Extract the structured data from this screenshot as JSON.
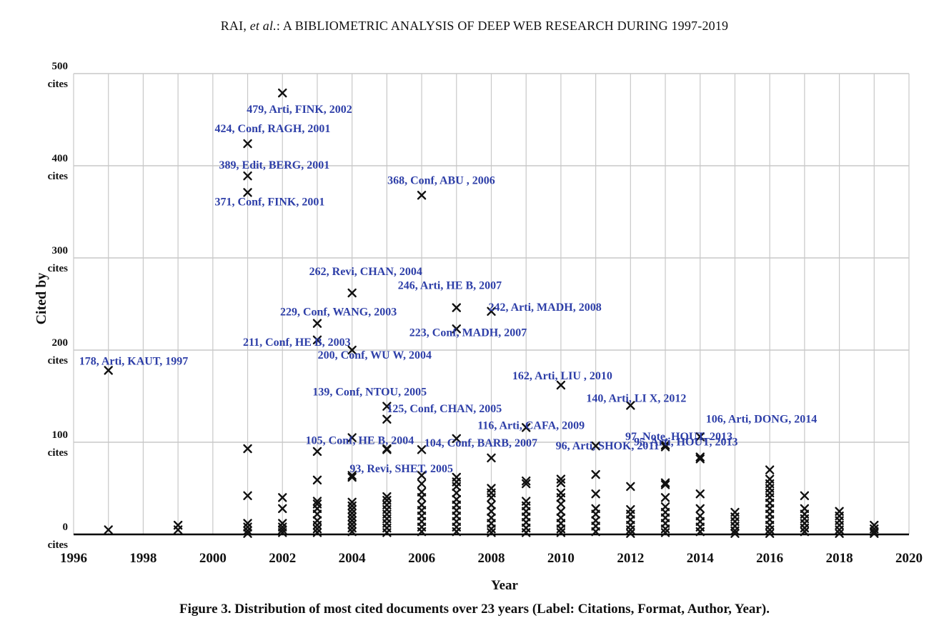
{
  "header": {
    "prefix": "RAI, ",
    "italic": "et al.",
    "suffix": ": A BIBLIOMETRIC ANALYSIS OF DEEP WEB RESEARCH DURING 1997-2019"
  },
  "caption": "Figure 3. Distribution of most cited documents over 23 years (Label: Citations, Format, Author, Year).",
  "colors": {
    "label": "#2e3fa8",
    "marker": "#111111",
    "grid": "#c8c8c8",
    "axis": "#000000"
  },
  "chart_data": {
    "type": "scatter",
    "xlabel": "Year",
    "ylabel": "Cited by",
    "xlim": [
      1996,
      2020
    ],
    "ylim": [
      0,
      500
    ],
    "grid": true,
    "x_ticks": [
      {
        "value": 1996,
        "label": "1996"
      },
      {
        "value": 1998,
        "label": "1998"
      },
      {
        "value": 2000,
        "label": "2000"
      },
      {
        "value": 2002,
        "label": "2002"
      },
      {
        "value": 2004,
        "label": "2004"
      },
      {
        "value": 2006,
        "label": "2006"
      },
      {
        "value": 2008,
        "label": "2008"
      },
      {
        "value": 2010,
        "label": "2010"
      },
      {
        "value": 2012,
        "label": "2012"
      },
      {
        "value": 2014,
        "label": "2014"
      },
      {
        "value": 2016,
        "label": "2016"
      },
      {
        "value": 2018,
        "label": "2018"
      },
      {
        "value": 2020,
        "label": "2020"
      }
    ],
    "y_ticks": [
      {
        "value": 0,
        "label": "0",
        "unit": "cites"
      },
      {
        "value": 100,
        "label": "100",
        "unit": "cites"
      },
      {
        "value": 200,
        "label": "200",
        "unit": "cites"
      },
      {
        "value": 300,
        "label": "300",
        "unit": "cites"
      },
      {
        "value": 400,
        "label": "400",
        "unit": "cites"
      },
      {
        "value": 500,
        "label": "500",
        "unit": "cites"
      }
    ],
    "labeled_points": [
      {
        "x": 2002,
        "y": 479,
        "label": "479, Arti, FINK, 2002"
      },
      {
        "x": 2001,
        "y": 424,
        "label": "424, Conf, RAGH, 2001"
      },
      {
        "x": 2001,
        "y": 389,
        "label": "389, Edit, BERG, 2001"
      },
      {
        "x": 2001,
        "y": 371,
        "label": "371, Conf, FINK, 2001"
      },
      {
        "x": 2006,
        "y": 368,
        "label": "368, Conf, ABU , 2006"
      },
      {
        "x": 2004,
        "y": 262,
        "label": "262, Revi, CHAN, 2004"
      },
      {
        "x": 2007,
        "y": 246,
        "label": "246, Arti, HE B, 2007"
      },
      {
        "x": 2008,
        "y": 242,
        "label": "242, Arti, MADH, 2008"
      },
      {
        "x": 2003,
        "y": 229,
        "label": "229, Conf, WANG, 2003"
      },
      {
        "x": 2007,
        "y": 223,
        "label": "223, Conf, MADH, 2007"
      },
      {
        "x": 2003,
        "y": 211,
        "label": "211, Conf, HE B, 2003"
      },
      {
        "x": 2004,
        "y": 200,
        "label": "200, Conf, WU W, 2004"
      },
      {
        "x": 1997,
        "y": 178,
        "label": "178, Arti, KAUT, 1997"
      },
      {
        "x": 2010,
        "y": 162,
        "label": "162, Arti, LIU , 2010"
      },
      {
        "x": 2012,
        "y": 140,
        "label": "140, Arti, LI X, 2012"
      },
      {
        "x": 2005,
        "y": 139,
        "label": "139, Conf, NTOU, 2005"
      },
      {
        "x": 2005,
        "y": 125,
        "label": "125, Conf, CHAN, 2005"
      },
      {
        "x": 2009,
        "y": 116,
        "label": "116, Arti, CAFA, 2009"
      },
      {
        "x": 2014,
        "y": 106,
        "label": "106, Arti, DONG, 2014"
      },
      {
        "x": 2004,
        "y": 105,
        "label": "105, Conf, HE B, 2004"
      },
      {
        "x": 2007,
        "y": 104,
        "label": "104, Conf, BARB, 2007"
      },
      {
        "x": 2013,
        "y": 97,
        "label": "97, Note, HOUT, 2013"
      },
      {
        "x": 2011,
        "y": 96,
        "label": "96, Arti, SHOK, 2011"
      },
      {
        "x": 2013,
        "y": 95,
        "label": "95, Arti, HOUT, 2013"
      },
      {
        "x": 2005,
        "y": 93,
        "label": "93, Revi, SHET, 2005"
      }
    ],
    "points": [
      [
        1997,
        5
      ],
      [
        1999,
        5
      ],
      [
        1999,
        10
      ],
      [
        2001,
        93
      ],
      [
        2001,
        42
      ],
      [
        2001,
        12
      ],
      [
        2001,
        8
      ],
      [
        2001,
        4
      ],
      [
        2001,
        1
      ],
      [
        2002,
        40
      ],
      [
        2002,
        28
      ],
      [
        2002,
        12
      ],
      [
        2002,
        8
      ],
      [
        2002,
        5
      ],
      [
        2002,
        2
      ],
      [
        2003,
        90
      ],
      [
        2003,
        59
      ],
      [
        2003,
        36
      ],
      [
        2003,
        33
      ],
      [
        2003,
        28
      ],
      [
        2003,
        22
      ],
      [
        2003,
        15
      ],
      [
        2003,
        10
      ],
      [
        2003,
        6
      ],
      [
        2003,
        2
      ],
      [
        2004,
        64
      ],
      [
        2004,
        62
      ],
      [
        2004,
        35
      ],
      [
        2004,
        31
      ],
      [
        2004,
        27
      ],
      [
        2004,
        23
      ],
      [
        2004,
        19
      ],
      [
        2004,
        15
      ],
      [
        2004,
        11
      ],
      [
        2004,
        7
      ],
      [
        2004,
        3
      ],
      [
        2005,
        92
      ],
      [
        2005,
        41
      ],
      [
        2005,
        37
      ],
      [
        2005,
        32
      ],
      [
        2005,
        27
      ],
      [
        2005,
        22
      ],
      [
        2005,
        17
      ],
      [
        2005,
        12
      ],
      [
        2005,
        7
      ],
      [
        2005,
        2
      ],
      [
        2006,
        92
      ],
      [
        2006,
        64
      ],
      [
        2006,
        55
      ],
      [
        2006,
        46
      ],
      [
        2006,
        40
      ],
      [
        2006,
        32
      ],
      [
        2006,
        26
      ],
      [
        2006,
        20
      ],
      [
        2006,
        14
      ],
      [
        2006,
        8
      ],
      [
        2006,
        3
      ],
      [
        2007,
        62
      ],
      [
        2007,
        57
      ],
      [
        2007,
        52
      ],
      [
        2007,
        45
      ],
      [
        2007,
        38
      ],
      [
        2007,
        32
      ],
      [
        2007,
        26
      ],
      [
        2007,
        20
      ],
      [
        2007,
        14
      ],
      [
        2007,
        8
      ],
      [
        2007,
        3
      ],
      [
        2008,
        83
      ],
      [
        2008,
        50
      ],
      [
        2008,
        45
      ],
      [
        2008,
        40
      ],
      [
        2008,
        32
      ],
      [
        2008,
        25
      ],
      [
        2008,
        18
      ],
      [
        2008,
        12
      ],
      [
        2008,
        6
      ],
      [
        2008,
        2
      ],
      [
        2009,
        58
      ],
      [
        2009,
        55
      ],
      [
        2009,
        36
      ],
      [
        2009,
        31
      ],
      [
        2009,
        25
      ],
      [
        2009,
        19
      ],
      [
        2009,
        13
      ],
      [
        2009,
        7
      ],
      [
        2009,
        2
      ],
      [
        2010,
        60
      ],
      [
        2010,
        56
      ],
      [
        2010,
        45
      ],
      [
        2010,
        40
      ],
      [
        2010,
        33
      ],
      [
        2010,
        25
      ],
      [
        2010,
        18
      ],
      [
        2010,
        12
      ],
      [
        2010,
        6
      ],
      [
        2010,
        2
      ],
      [
        2011,
        65
      ],
      [
        2011,
        44
      ],
      [
        2011,
        28
      ],
      [
        2011,
        22
      ],
      [
        2011,
        15
      ],
      [
        2011,
        9
      ],
      [
        2011,
        3
      ],
      [
        2012,
        52
      ],
      [
        2012,
        27
      ],
      [
        2012,
        22
      ],
      [
        2012,
        16
      ],
      [
        2012,
        10
      ],
      [
        2012,
        5
      ],
      [
        2012,
        1
      ],
      [
        2013,
        56
      ],
      [
        2013,
        54
      ],
      [
        2013,
        40
      ],
      [
        2013,
        30
      ],
      [
        2013,
        24
      ],
      [
        2013,
        18
      ],
      [
        2013,
        12
      ],
      [
        2013,
        6
      ],
      [
        2013,
        2
      ],
      [
        2014,
        84
      ],
      [
        2014,
        82
      ],
      [
        2014,
        44
      ],
      [
        2014,
        28
      ],
      [
        2014,
        20
      ],
      [
        2014,
        14
      ],
      [
        2014,
        8
      ],
      [
        2014,
        3
      ],
      [
        2015,
        24
      ],
      [
        2015,
        19
      ],
      [
        2015,
        14
      ],
      [
        2015,
        9
      ],
      [
        2015,
        4
      ],
      [
        2015,
        1
      ],
      [
        2016,
        70
      ],
      [
        2016,
        60
      ],
      [
        2016,
        55
      ],
      [
        2016,
        50
      ],
      [
        2016,
        45
      ],
      [
        2016,
        40
      ],
      [
        2016,
        34
      ],
      [
        2016,
        28
      ],
      [
        2016,
        22
      ],
      [
        2016,
        16
      ],
      [
        2016,
        10
      ],
      [
        2016,
        5
      ],
      [
        2016,
        1
      ],
      [
        2017,
        42
      ],
      [
        2017,
        28
      ],
      [
        2017,
        22
      ],
      [
        2017,
        17
      ],
      [
        2017,
        12
      ],
      [
        2017,
        7
      ],
      [
        2017,
        3
      ],
      [
        2018,
        25
      ],
      [
        2018,
        20
      ],
      [
        2018,
        15
      ],
      [
        2018,
        10
      ],
      [
        2018,
        5
      ],
      [
        2018,
        1
      ],
      [
        2019,
        10
      ],
      [
        2019,
        6
      ],
      [
        2019,
        3
      ],
      [
        2019,
        1
      ]
    ]
  }
}
